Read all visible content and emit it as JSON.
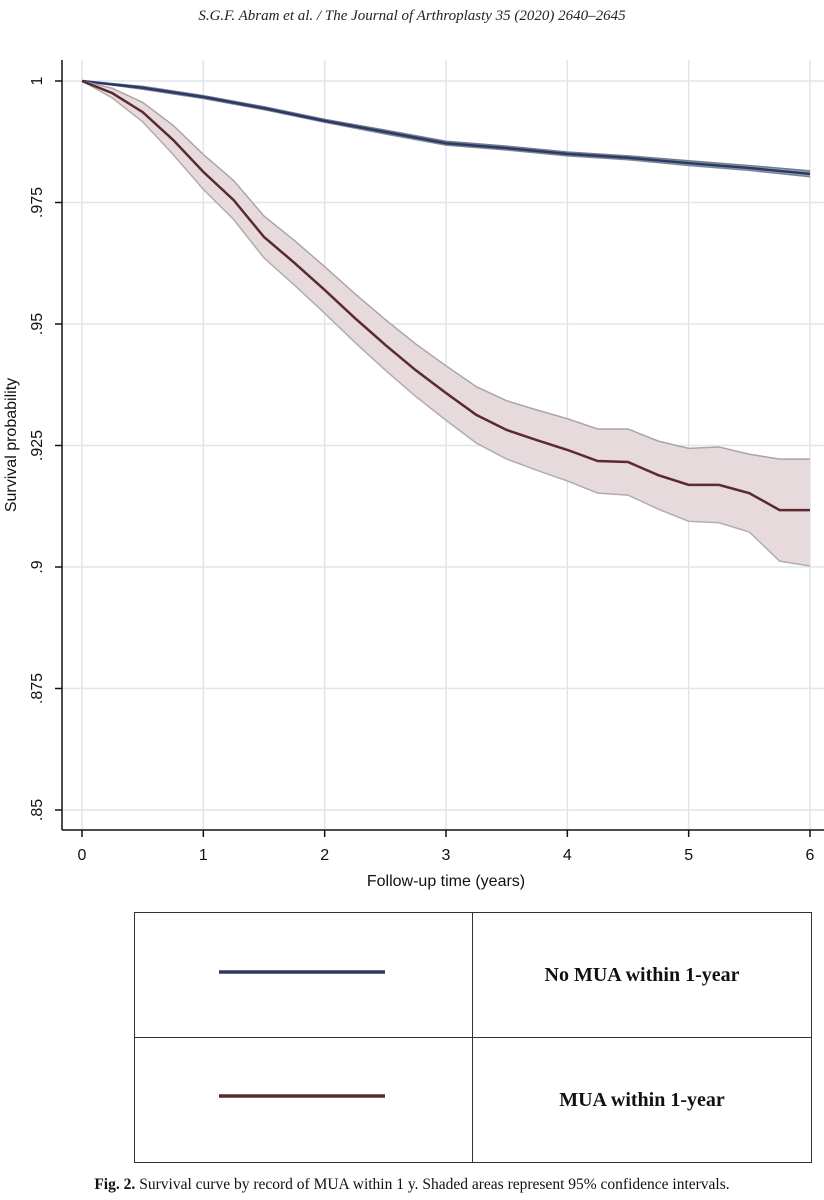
{
  "header": "S.G.F. Abram et al. / The Journal of Arthroplasty 35 (2020) 2640–2645",
  "chart_data": {
    "type": "line",
    "x_label": "Follow-up time (years)",
    "y_label": "Survival probability",
    "xlim": [
      0,
      6
    ],
    "xticks": [
      0,
      1,
      2,
      3,
      4,
      5,
      6
    ],
    "ylim": [
      0.85,
      1
    ],
    "yticks": [
      {
        "value": 0.85,
        "label": ".85"
      },
      {
        "value": 0.875,
        "label": ".875"
      },
      {
        "value": 0.9,
        "label": ".9"
      },
      {
        "value": 0.925,
        "label": ".925"
      },
      {
        "value": 0.95,
        "label": ".95"
      },
      {
        "value": 0.975,
        "label": ".975"
      },
      1
    ],
    "grid": true,
    "series": [
      {
        "name": "No MUA within 1-year",
        "color": "#2b3a63",
        "band_color": "#9aa6bf",
        "x": [
          0,
          0.5,
          1,
          1.5,
          2,
          2.5,
          3,
          3.5,
          4,
          4.5,
          5,
          5.5,
          6
        ],
        "values": [
          1,
          0.9986,
          0.9967,
          0.9944,
          0.9918,
          0.9895,
          0.9872,
          0.9862,
          0.985,
          0.9842,
          0.9831,
          0.9821,
          0.9809
        ],
        "ci_lower": [
          1,
          0.9983,
          0.9964,
          0.9941,
          0.9915,
          0.9891,
          0.9868,
          0.9858,
          0.9846,
          0.9838,
          0.9826,
          0.9816,
          0.9803
        ],
        "ci_upper": [
          1,
          0.9989,
          0.997,
          0.9947,
          0.9921,
          0.9899,
          0.9876,
          0.9866,
          0.9854,
          0.9846,
          0.9836,
          0.9826,
          0.9815
        ]
      },
      {
        "name": "MUA within 1-year",
        "color": "#5a2a2e",
        "band_color": "#e6dadd",
        "x": [
          0,
          0.25,
          0.5,
          0.75,
          1,
          1.25,
          1.5,
          1.75,
          2,
          2.25,
          2.5,
          2.75,
          3,
          3.25,
          3.5,
          3.75,
          4,
          4.25,
          4.5,
          4.75,
          5,
          5.25,
          5.5,
          5.75,
          6
        ],
        "values": [
          1,
          0.9975,
          0.9936,
          0.9879,
          0.9813,
          0.9755,
          0.9679,
          0.9626,
          0.957,
          0.9512,
          0.9457,
          0.9405,
          0.9358,
          0.9313,
          0.9282,
          0.9261,
          0.9241,
          0.9218,
          0.9216,
          0.9189,
          0.9169,
          0.9169,
          0.9152,
          0.9117,
          0.9117
        ],
        "ci_lower": [
          1,
          0.9965,
          0.9916,
          0.9849,
          0.9777,
          0.9715,
          0.9636,
          0.958,
          0.9522,
          0.9462,
          0.9405,
          0.9351,
          0.9302,
          0.9255,
          0.9222,
          0.9199,
          0.9177,
          0.9152,
          0.9148,
          0.9119,
          0.9094,
          0.9091,
          0.9072,
          0.9012,
          0.9002
        ],
        "ci_upper": [
          1,
          0.9985,
          0.9956,
          0.9909,
          0.9849,
          0.9795,
          0.9722,
          0.9672,
          0.9618,
          0.9562,
          0.9509,
          0.9459,
          0.9414,
          0.9371,
          0.9342,
          0.9323,
          0.9305,
          0.9284,
          0.9284,
          0.9259,
          0.9244,
          0.9247,
          0.9232,
          0.9222,
          0.9222
        ]
      }
    ]
  },
  "caption_label": "Fig. 2.",
  "caption_text": "Survival curve by record of MUA within 1 y. Shaded areas represent 95% confidence intervals."
}
